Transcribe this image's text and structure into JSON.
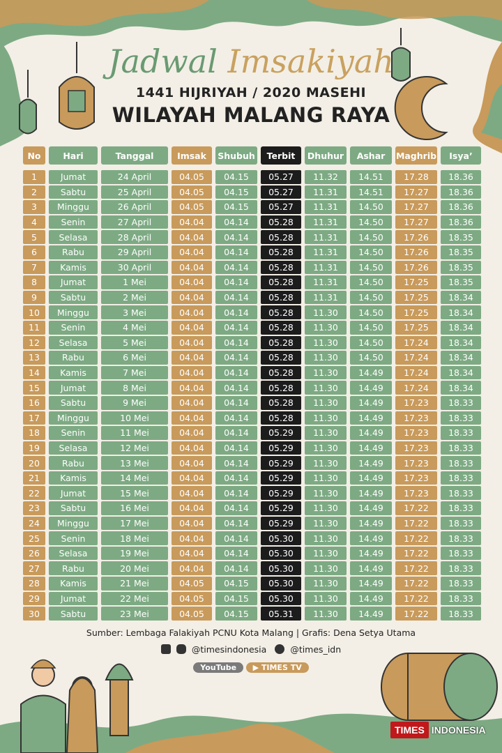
{
  "title": {
    "part1": "Jadwal",
    "part2": "Imsakiyah"
  },
  "subtitle1": "1441 HIJRIYAH / 2020 MASEHI",
  "subtitle2": "WILAYAH MALANG RAYA",
  "headers": [
    "No",
    "Hari",
    "Tanggal",
    "Imsak",
    "Shubuh",
    "Terbit",
    "Dhuhur",
    "Ashar",
    "Maghrib",
    "Isya’"
  ],
  "rows": [
    [
      "1",
      "Jumat",
      "24 April",
      "04.05",
      "04.15",
      "05.27",
      "11.32",
      "14.51",
      "17.28",
      "18.36"
    ],
    [
      "2",
      "Sabtu",
      "25 April",
      "04.05",
      "04.15",
      "05.27",
      "11.31",
      "14.51",
      "17.27",
      "18.36"
    ],
    [
      "3",
      "Minggu",
      "26 April",
      "04.05",
      "04.15",
      "05.27",
      "11.31",
      "14.50",
      "17.27",
      "18.36"
    ],
    [
      "4",
      "Senin",
      "27 April",
      "04.04",
      "04.14",
      "05.28",
      "11.31",
      "14.50",
      "17.27",
      "18.36"
    ],
    [
      "5",
      "Selasa",
      "28 April",
      "04.04",
      "04.14",
      "05.28",
      "11.31",
      "14.50",
      "17.26",
      "18.35"
    ],
    [
      "6",
      "Rabu",
      "29 April",
      "04.04",
      "04.14",
      "05.28",
      "11.31",
      "14.50",
      "17.26",
      "18.35"
    ],
    [
      "7",
      "Kamis",
      "30 April",
      "04.04",
      "04.14",
      "05.28",
      "11.31",
      "14.50",
      "17.26",
      "18.35"
    ],
    [
      "8",
      "Jumat",
      "1 Mei",
      "04.04",
      "04.14",
      "05.28",
      "11.31",
      "14.50",
      "17.25",
      "18.35"
    ],
    [
      "9",
      "Sabtu",
      "2 Mei",
      "04.04",
      "04.14",
      "05.28",
      "11.31",
      "14.50",
      "17.25",
      "18.34"
    ],
    [
      "10",
      "Minggu",
      "3 Mei",
      "04.04",
      "04.14",
      "05.28",
      "11.30",
      "14.50",
      "17.25",
      "18.34"
    ],
    [
      "11",
      "Senin",
      "4 Mei",
      "04.04",
      "04.14",
      "05.28",
      "11.30",
      "14.50",
      "17.25",
      "18.34"
    ],
    [
      "12",
      "Selasa",
      "5 Mei",
      "04.04",
      "04.14",
      "05.28",
      "11.30",
      "14.50",
      "17.24",
      "18.34"
    ],
    [
      "13",
      "Rabu",
      "6 Mei",
      "04.04",
      "04.14",
      "05.28",
      "11.30",
      "14.50",
      "17.24",
      "18.34"
    ],
    [
      "14",
      "Kamis",
      "7 Mei",
      "04.04",
      "04.14",
      "05.28",
      "11.30",
      "14.49",
      "17.24",
      "18.34"
    ],
    [
      "15",
      "Jumat",
      "8 Mei",
      "04.04",
      "04.14",
      "05.28",
      "11.30",
      "14.49",
      "17.24",
      "18.34"
    ],
    [
      "16",
      "Sabtu",
      "9 Mei",
      "04.04",
      "04.14",
      "05.28",
      "11.30",
      "14.49",
      "17.23",
      "18.33"
    ],
    [
      "17",
      "Minggu",
      "10 Mei",
      "04.04",
      "04.14",
      "05.28",
      "11.30",
      "14.49",
      "17.23",
      "18.33"
    ],
    [
      "18",
      "Senin",
      "11 Mei",
      "04.04",
      "04.14",
      "05.29",
      "11.30",
      "14.49",
      "17.23",
      "18.33"
    ],
    [
      "19",
      "Selasa",
      "12 Mei",
      "04.04",
      "04.14",
      "05.29",
      "11.30",
      "14.49",
      "17.23",
      "18.33"
    ],
    [
      "20",
      "Rabu",
      "13 Mei",
      "04.04",
      "04.14",
      "05.29",
      "11.30",
      "14.49",
      "17.23",
      "18.33"
    ],
    [
      "21",
      "Kamis",
      "14 Mei",
      "04.04",
      "04.14",
      "05.29",
      "11.30",
      "14.49",
      "17.23",
      "18.33"
    ],
    [
      "22",
      "Jumat",
      "15 Mei",
      "04.04",
      "04.14",
      "05.29",
      "11.30",
      "14.49",
      "17.23",
      "18.33"
    ],
    [
      "23",
      "Sabtu",
      "16 Mei",
      "04.04",
      "04.14",
      "05.29",
      "11.30",
      "14.49",
      "17.22",
      "18.33"
    ],
    [
      "24",
      "Minggu",
      "17 Mei",
      "04.04",
      "04.14",
      "05.29",
      "11.30",
      "14.49",
      "17.22",
      "18.33"
    ],
    [
      "25",
      "Senin",
      "18 Mei",
      "04.04",
      "04.14",
      "05.30",
      "11.30",
      "14.49",
      "17.22",
      "18.33"
    ],
    [
      "26",
      "Selasa",
      "19 Mei",
      "04.04",
      "04.14",
      "05.30",
      "11.30",
      "14.49",
      "17.22",
      "18.33"
    ],
    [
      "27",
      "Rabu",
      "20 Mei",
      "04.04",
      "04.14",
      "05.30",
      "11.30",
      "14.49",
      "17.22",
      "18.33"
    ],
    [
      "28",
      "Kamis",
      "21 Mei",
      "04.05",
      "04.15",
      "05.30",
      "11.30",
      "14.49",
      "17.22",
      "18.33"
    ],
    [
      "29",
      "Jumat",
      "22 Mei",
      "04.05",
      "04.15",
      "05.30",
      "11.30",
      "14.49",
      "17.22",
      "18.33"
    ],
    [
      "30",
      "Sabtu",
      "23 Mei",
      "04.05",
      "04.15",
      "05.31",
      "11.30",
      "14.49",
      "17.22",
      "18.33"
    ]
  ],
  "source": "Sumber: Lembaga Falakiyah PCNU Kota Malang | Grafis: Dena Setya Utama",
  "social": {
    "instagram": "@timesindonesia",
    "twitter": "@times_idn",
    "youtube": "YouTube",
    "tv": "TIMES TV"
  },
  "brand": {
    "part1": "TIMES",
    "part2": "INDONESIA"
  },
  "colors": {
    "green": "#7daa83",
    "gold": "#c89a5b",
    "black": "#1c1c1c",
    "bg": "#f3efe6"
  }
}
